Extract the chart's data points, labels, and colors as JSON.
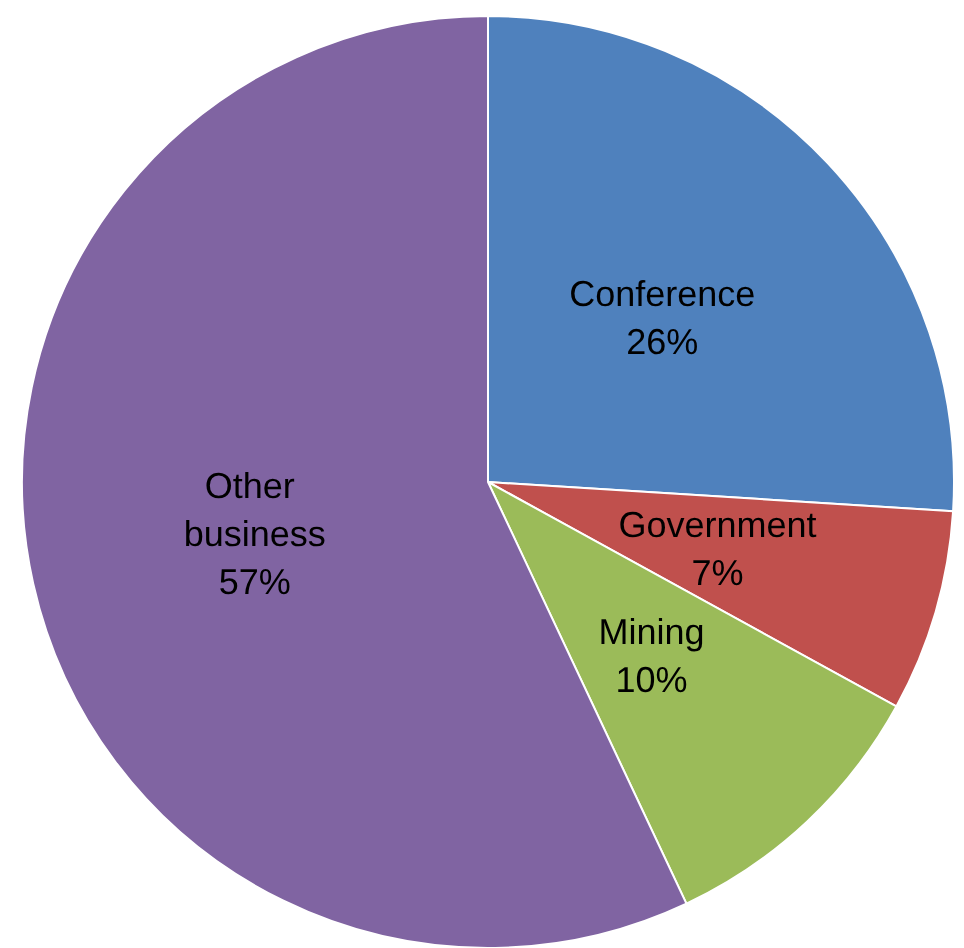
{
  "chart_data": {
    "type": "pie",
    "categories": [
      "Conference",
      "Government",
      "Mining",
      "Other business"
    ],
    "values": [
      26,
      7,
      10,
      57
    ],
    "value_labels": [
      "26%",
      "7%",
      "10%",
      "57%"
    ],
    "colors": [
      "#4f81bd",
      "#c0504d",
      "#9bbb59",
      "#8064a2"
    ],
    "legend": false
  }
}
